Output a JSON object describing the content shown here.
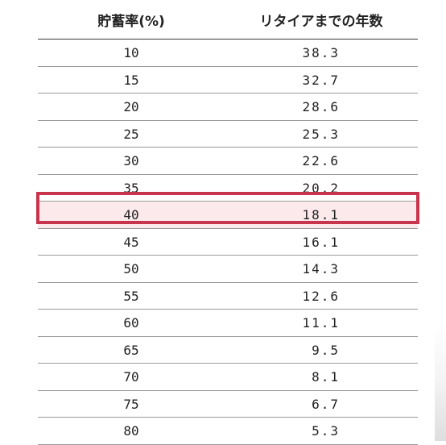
{
  "table": {
    "headers": {
      "rate": "貯蓄率(%)",
      "years": "リタイアまでの年数"
    },
    "rows": [
      {
        "rate": "10",
        "years": "38.3"
      },
      {
        "rate": "15",
        "years": "32.7"
      },
      {
        "rate": "20",
        "years": "28.6"
      },
      {
        "rate": "25",
        "years": "25.3"
      },
      {
        "rate": "30",
        "years": "22.6"
      },
      {
        "rate": "35",
        "years": "20.2"
      },
      {
        "rate": "40",
        "years": "18.1"
      },
      {
        "rate": "45",
        "years": "16.1"
      },
      {
        "rate": "50",
        "years": "14.3"
      },
      {
        "rate": "55",
        "years": "12.6"
      },
      {
        "rate": "60",
        "years": "11.1"
      },
      {
        "rate": "65",
        "years": "9.5"
      },
      {
        "rate": "70",
        "years": "8.1"
      },
      {
        "rate": "75",
        "years": "6.7"
      },
      {
        "rate": "80",
        "years": "5.3"
      }
    ],
    "highlighted_rate": "40",
    "highlight_color": "#c8344c",
    "highlight_fill": "#fbe9ec"
  }
}
